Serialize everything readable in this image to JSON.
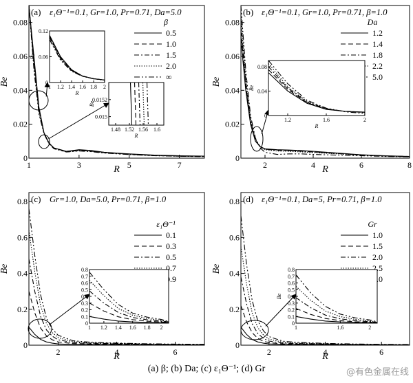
{
  "figure": {
    "caption": "(a) β; (b) Da; (c) ε₁Θ⁻¹; (d) Gr",
    "watermark": "@有色金属在线"
  },
  "chart_data": [
    {
      "type": "line",
      "panel_label": "(a)",
      "title": "ε₁Θ⁻¹=0.1, Gr=1.0, Pr=0.71, Da=5.0",
      "xlabel": "R",
      "ylabel": "Be",
      "xlim": [
        1,
        8
      ],
      "ylim": [
        0,
        0.09
      ],
      "xticks": [
        1,
        3,
        5,
        7
      ],
      "yticks": [
        0,
        0.02,
        0.04,
        0.06,
        0.08
      ],
      "legend_title": "β",
      "legend_position": "top-right",
      "x": [
        1.0,
        1.2,
        1.4,
        1.6,
        1.8,
        2.0,
        2.5,
        3.0,
        3.5,
        4.0,
        5.0,
        6.0,
        7.0,
        8.0
      ],
      "series": [
        {
          "name": "0.5",
          "values": [
            0.11,
            0.06,
            0.03,
            0.015,
            0.009,
            0.006,
            0.004,
            0.005,
            0.0045,
            0.0035,
            0.0025,
            0.0018,
            0.0014,
            0.0012
          ]
        },
        {
          "name": "1.0",
          "values": [
            0.108,
            0.058,
            0.029,
            0.015,
            0.009,
            0.006,
            0.004,
            0.0048,
            0.0043,
            0.0034,
            0.0024,
            0.0017,
            0.0013,
            0.0011
          ]
        },
        {
          "name": "1.5",
          "values": [
            0.105,
            0.056,
            0.028,
            0.0148,
            0.0088,
            0.0058,
            0.0038,
            0.0046,
            0.0041,
            0.0033,
            0.0023,
            0.0016,
            0.0012,
            0.001
          ]
        },
        {
          "name": "2.0",
          "values": [
            0.103,
            0.055,
            0.027,
            0.0146,
            0.0087,
            0.0057,
            0.0037,
            0.0044,
            0.004,
            0.0032,
            0.0022,
            0.0015,
            0.0011,
            0.001
          ]
        },
        {
          "name": "∞",
          "values": [
            0.1,
            0.052,
            0.026,
            0.0144,
            0.0085,
            0.0055,
            0.0036,
            0.0042,
            0.0038,
            0.003,
            0.0021,
            0.0014,
            0.0011,
            0.0009
          ]
        }
      ],
      "insets": [
        {
          "xlim": [
            1.0,
            2.0
          ],
          "ylim": [
            0,
            0.12
          ],
          "xticks": [
            1.0,
            1.2,
            1.4,
            1.6,
            1.8,
            2.0
          ],
          "yticks": [
            0,
            0.06,
            0.12
          ],
          "ylabel": "Be",
          "xlabel": "R"
        },
        {
          "xlim": [
            1.46,
            1.62
          ],
          "ylim": [
            0.0149,
            0.0154
          ],
          "xticks": [
            1.48,
            1.52,
            1.56,
            1.6
          ],
          "yticks": [
            0.015,
            0.0152
          ],
          "ylabel": "Be",
          "xlabel": "R"
        }
      ]
    },
    {
      "type": "line",
      "panel_label": "(b)",
      "title": "ε₁Θ⁻¹=0.1, Gr=1.0, Pr=0.71, β=1.0",
      "xlabel": "R",
      "ylabel": "Be",
      "xlim": [
        1,
        8
      ],
      "ylim": [
        0,
        0.09
      ],
      "xticks": [
        2,
        4,
        6,
        8
      ],
      "yticks": [
        0,
        0.02,
        0.04,
        0.06,
        0.08
      ],
      "legend_title": "Da",
      "legend_position": "top-right",
      "x": [
        1.0,
        1.2,
        1.4,
        1.6,
        1.8,
        2.0,
        2.5,
        3.0,
        3.5,
        4.0,
        5.0,
        6.0,
        7.0,
        8.0
      ],
      "series": [
        {
          "name": "1.2",
          "values": [
            0.07,
            0.04,
            0.02,
            0.01,
            0.0068,
            0.0055,
            0.005,
            0.0048,
            0.0045,
            0.004,
            0.003,
            0.002,
            0.0014,
            0.001
          ]
        },
        {
          "name": "1.4",
          "values": [
            0.075,
            0.043,
            0.021,
            0.0105,
            0.0068,
            0.0054,
            0.0048,
            0.0046,
            0.0043,
            0.0038,
            0.0028,
            0.0019,
            0.0013,
            0.001
          ]
        },
        {
          "name": "1.8",
          "values": [
            0.08,
            0.045,
            0.022,
            0.011,
            0.0068,
            0.0053,
            0.0046,
            0.0044,
            0.0041,
            0.0036,
            0.0027,
            0.0018,
            0.0013,
            0.0009
          ]
        },
        {
          "name": "2.2",
          "values": [
            0.085,
            0.047,
            0.023,
            0.0112,
            0.0066,
            0.005,
            0.0042,
            0.004,
            0.0037,
            0.0033,
            0.0025,
            0.0017,
            0.0012,
            0.0009
          ]
        },
        {
          "name": "5.0",
          "values": [
            0.095,
            0.052,
            0.025,
            0.012,
            0.006,
            0.0035,
            0.0022,
            0.0025,
            0.0025,
            0.0022,
            0.0018,
            0.0014,
            0.001,
            0.0008
          ]
        }
      ],
      "insets": [
        {
          "xlim": [
            1.0,
            2.0
          ],
          "ylim": [
            0,
            0.09
          ],
          "xticks": [
            1.2,
            1.6,
            2.0
          ],
          "yticks": [
            0,
            0.04,
            0.08
          ],
          "ylabel": "Be",
          "xlabel": "R"
        }
      ]
    },
    {
      "type": "line",
      "panel_label": "(c)",
      "title": "Gr=1.0, Da=5.0, Pr=0.71, β=1.0",
      "xlabel": "R",
      "ylabel": "Be",
      "xlim": [
        1,
        7
      ],
      "ylim": [
        0,
        0.85
      ],
      "xticks": [
        2,
        4,
        6
      ],
      "yticks": [
        0,
        0.2,
        0.4,
        0.6,
        0.8
      ],
      "legend_title": "ε₁Θ⁻¹",
      "legend_position": "top-right",
      "x": [
        1.0,
        1.2,
        1.4,
        1.6,
        1.8,
        2.0,
        2.5,
        3.0,
        3.5,
        4.0,
        5.0,
        6.0,
        7.0
      ],
      "series": [
        {
          "name": "0.1",
          "values": [
            0.1,
            0.06,
            0.032,
            0.018,
            0.011,
            0.007,
            0.004,
            0.004,
            0.004,
            0.003,
            0.002,
            0.0015,
            0.001
          ]
        },
        {
          "name": "0.3",
          "values": [
            0.3,
            0.18,
            0.095,
            0.052,
            0.03,
            0.018,
            0.009,
            0.008,
            0.007,
            0.006,
            0.004,
            0.003,
            0.002
          ]
        },
        {
          "name": "0.5",
          "values": [
            0.48,
            0.3,
            0.16,
            0.085,
            0.05,
            0.03,
            0.015,
            0.012,
            0.01,
            0.008,
            0.005,
            0.004,
            0.003
          ]
        },
        {
          "name": "0.7",
          "values": [
            0.64,
            0.41,
            0.22,
            0.12,
            0.07,
            0.042,
            0.02,
            0.015,
            0.012,
            0.01,
            0.007,
            0.005,
            0.004
          ]
        },
        {
          "name": "0.9",
          "values": [
            0.76,
            0.5,
            0.28,
            0.15,
            0.09,
            0.055,
            0.025,
            0.018,
            0.014,
            0.012,
            0.008,
            0.006,
            0.005
          ]
        }
      ],
      "insets": [
        {
          "xlim": [
            1.0,
            2.1
          ],
          "ylim": [
            0,
            0.8
          ],
          "xticks": [
            1.0,
            1.2,
            1.4,
            1.6,
            1.8,
            2.0
          ],
          "yticks": [
            0,
            0.1,
            0.2,
            0.3,
            0.4,
            0.5,
            0.6,
            0.7,
            0.8
          ],
          "ylabel": "",
          "xlabel": ""
        }
      ]
    },
    {
      "type": "line",
      "panel_label": "(d)",
      "title": "ε₁Θ⁻¹=0.1, Da=5, Pr=0.71, β=1.0",
      "xlabel": "R",
      "ylabel": "Be",
      "xlim": [
        1,
        7
      ],
      "ylim": [
        0,
        0.85
      ],
      "xticks": [
        2,
        4,
        6
      ],
      "yticks": [
        0,
        0.2,
        0.4,
        0.6,
        0.8
      ],
      "legend_title": "Gr",
      "legend_position": "top-right",
      "x": [
        1.0,
        1.2,
        1.4,
        1.6,
        1.8,
        2.0,
        2.5,
        3.0,
        3.5,
        4.0,
        5.0,
        6.0,
        7.0
      ],
      "series": [
        {
          "name": "1.0",
          "values": [
            0.1,
            0.06,
            0.032,
            0.018,
            0.011,
            0.007,
            0.004,
            0.004,
            0.004,
            0.003,
            0.002,
            0.0015,
            0.001
          ]
        },
        {
          "name": "1.5",
          "values": [
            0.22,
            0.13,
            0.07,
            0.038,
            0.022,
            0.014,
            0.007,
            0.006,
            0.005,
            0.004,
            0.003,
            0.002,
            0.0015
          ]
        },
        {
          "name": "2.0",
          "values": [
            0.38,
            0.23,
            0.12,
            0.065,
            0.038,
            0.023,
            0.011,
            0.009,
            0.008,
            0.006,
            0.004,
            0.003,
            0.002
          ]
        },
        {
          "name": "2.5",
          "values": [
            0.55,
            0.34,
            0.18,
            0.098,
            0.057,
            0.034,
            0.016,
            0.012,
            0.01,
            0.008,
            0.005,
            0.004,
            0.003
          ]
        },
        {
          "name": "3.0",
          "values": [
            0.72,
            0.45,
            0.25,
            0.135,
            0.08,
            0.048,
            0.022,
            0.016,
            0.013,
            0.01,
            0.007,
            0.005,
            0.004
          ]
        }
      ],
      "insets": [
        {
          "xlim": [
            1.0,
            2.1
          ],
          "ylim": [
            0,
            0.8
          ],
          "xticks": [
            1.0,
            1.6,
            2.0
          ],
          "yticks": [
            0,
            0.1,
            0.2,
            0.3,
            0.4,
            0.5,
            0.6,
            0.7,
            0.8
          ],
          "ylabel": "Be",
          "xlabel": ""
        }
      ]
    }
  ]
}
